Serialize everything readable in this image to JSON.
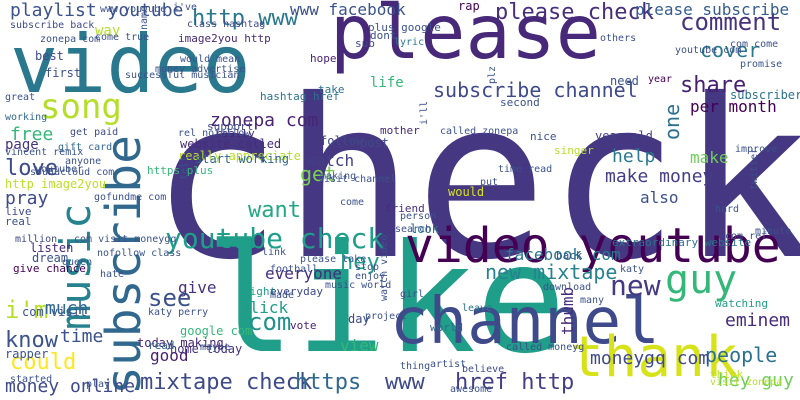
{
  "words": [
    {
      "text": "check",
      "color": "#453781"
    },
    {
      "text": "like",
      "color": "#1f9e89"
    },
    {
      "text": "please",
      "color": "#482878"
    },
    {
      "text": "video youtube",
      "color": "#440154"
    },
    {
      "text": "video",
      "color": "#2a788e"
    },
    {
      "text": "channel",
      "color": "#3e4a89"
    },
    {
      "text": "thank",
      "color": "#d8e219"
    },
    {
      "text": "subscribe",
      "color": "#31688e"
    },
    {
      "text": "music",
      "color": "#26828e"
    },
    {
      "text": "song",
      "color": "#b5de2b"
    },
    {
      "text": "guy",
      "color": "#35b779"
    },
    {
      "text": "youtube check",
      "color": "#1f9e89"
    },
    {
      "text": "mixtape check",
      "color": "#3e4a89"
    },
    {
      "text": "https",
      "color": "#31688e"
    },
    {
      "text": "www",
      "color": "#3e4a89"
    },
    {
      "text": "href http",
      "color": "#433e85"
    },
    {
      "text": "please check",
      "color": "#472d7b"
    },
    {
      "text": "comment",
      "color": "#46337e"
    },
    {
      "text": "subscribe channel",
      "color": "#3e4a89"
    },
    {
      "text": "new mixtape",
      "color": "#26828e"
    },
    {
      "text": "http www",
      "color": "#2a788e"
    },
    {
      "text": "playlist youtube",
      "color": "#3b528b"
    },
    {
      "text": "people",
      "color": "#2c728e"
    },
    {
      "text": "hey guy",
      "color": "#6ece58"
    },
    {
      "text": "i'm",
      "color": "#b5de2b"
    },
    {
      "text": "know",
      "color": "#3b528b"
    },
    {
      "text": "could",
      "color": "#fde725"
    },
    {
      "text": "com",
      "color": "#21918c"
    },
    {
      "text": "see",
      "color": "#3b528b"
    },
    {
      "text": "want",
      "color": "#22a884"
    },
    {
      "text": "make money",
      "color": "#433e85"
    },
    {
      "text": "love",
      "color": "#3e4a89"
    },
    {
      "text": "help",
      "color": "#2a788e"
    },
    {
      "text": "share",
      "color": "#481f70"
    },
    {
      "text": "new",
      "color": "#443983"
    },
    {
      "text": "eminem",
      "color": "#472d7b"
    },
    {
      "text": "moneygq com",
      "color": "#3e4a89"
    },
    {
      "text": "zonepa com",
      "color": "#482475"
    },
    {
      "text": "facebook com",
      "color": "#2a788e"
    },
    {
      "text": "hey",
      "color": "#1f9e89"
    },
    {
      "text": "money online",
      "color": "#3e4a89"
    },
    {
      "text": "get",
      "color": "#7ad151"
    },
    {
      "text": "free",
      "color": "#35b779"
    },
    {
      "text": "cover",
      "color": "#2a788e"
    },
    {
      "text": "www facebook",
      "color": "#3b528b"
    },
    {
      "text": "please subscribe",
      "color": "#365c8d"
    },
    {
      "text": "per month",
      "color": "#440154"
    },
    {
      "text": "one",
      "color": "#2c728e"
    },
    {
      "text": "much",
      "color": "#31688e"
    },
    {
      "text": "time",
      "color": "#3b528b"
    },
    {
      "text": "good",
      "color": "#481f70"
    },
    {
      "text": "view",
      "color": "#35b779"
    },
    {
      "text": "everyone",
      "color": "#472d7b"
    },
    {
      "text": "click",
      "color": "#1f9e89"
    },
    {
      "text": "give",
      "color": "#46337e"
    },
    {
      "text": "thumb",
      "color": "#472d7b"
    },
    {
      "text": "make",
      "color": "#6ece58"
    },
    {
      "text": "also",
      "color": "#3b528b"
    },
    {
      "text": "watch",
      "color": "#433e85"
    },
    {
      "text": "pray",
      "color": "#3e4a89"
    },
    {
      "text": "page",
      "color": "#46337e"
    },
    {
      "text": "life",
      "color": "#35b779"
    },
    {
      "text": "way",
      "color": "#b5de2b"
    },
    {
      "text": "best",
      "color": "#3e4a89"
    },
    {
      "text": "first",
      "color": "#3b528b"
    },
    {
      "text": "post",
      "color": "#3e4a89"
    },
    {
      "text": "follow",
      "color": "#3e4a89"
    },
    {
      "text": "subscriber",
      "color": "#2c728e"
    },
    {
      "text": "second",
      "color": "#3b528b"
    },
    {
      "text": "year old",
      "color": "#433e85"
    },
    {
      "text": "rap",
      "color": "#440154"
    },
    {
      "text": "website called",
      "color": "#472d7b"
    },
    {
      "text": "really appreciate",
      "color": "#b5de2b"
    },
    {
      "text": "start working",
      "color": "#31688e"
    },
    {
      "text": "extraordinary website",
      "color": "#2c728e"
    },
    {
      "text": "google com",
      "color": "#35b779"
    },
    {
      "text": "home today",
      "color": "#46337e"
    },
    {
      "text": "today making",
      "color": "#482475"
    },
    {
      "text": "https plus",
      "color": "#35b779"
    },
    {
      "text": "image2you http",
      "color": "#482878"
    },
    {
      "text": "http image2you",
      "color": "#bddf26"
    },
    {
      "text": "really",
      "color": "#482878"
    },
    {
      "text": "support",
      "color": "#3e4a89"
    },
    {
      "text": "need",
      "color": "#3b528b"
    },
    {
      "text": "year",
      "color": "#440154"
    },
    {
      "text": "take",
      "color": "#2c728e"
    },
    {
      "text": "friend",
      "color": "#472d7b"
    },
    {
      "text": "would",
      "color": "#d8e219"
    },
    {
      "text": "look",
      "color": "#2a788e"
    },
    {
      "text": "day",
      "color": "#3e4a89"
    },
    {
      "text": "back",
      "color": "#3b528b"
    },
    {
      "text": "katy",
      "color": "#3b528b"
    },
    {
      "text": "watching",
      "color": "#1f9e89"
    },
    {
      "text": "listen",
      "color": "#482878"
    },
    {
      "text": "dream",
      "color": "#3b528b"
    },
    {
      "text": "give chance",
      "color": "#440154"
    },
    {
      "text": "million",
      "color": "#3e4a89"
    },
    {
      "text": "rapper",
      "color": "#3b528b"
    },
    {
      "text": "com visit",
      "color": "#3b528b"
    },
    {
      "text": "started",
      "color": "#3b528b"
    },
    {
      "text": "read",
      "color": "#31688e"
    },
    {
      "text": "vote",
      "color": "#481f70"
    },
    {
      "text": "right",
      "color": "#1f9e89"
    },
    {
      "text": "everyday",
      "color": "#3e4a89"
    },
    {
      "text": "mother",
      "color": "#482878"
    },
    {
      "text": "live",
      "color": "#3e4a89"
    },
    {
      "text": "real",
      "color": "#3b528b"
    },
    {
      "text": "hope",
      "color": "#482475"
    },
    {
      "text": "dont",
      "color": "#3b528b"
    },
    {
      "text": "sub",
      "color": "#3e4a89"
    },
    {
      "text": "lyric",
      "color": "#2a788e"
    },
    {
      "text": "plus google",
      "color": "#3b528b"
    },
    {
      "text": "subscribe back",
      "color": "#3e4a89"
    },
    {
      "text": "nice",
      "color": "#3b528b"
    },
    {
      "text": "singer",
      "color": "#b5de2b"
    },
    {
      "text": "world",
      "color": "#31688e"
    },
    {
      "text": "leave",
      "color": "#2c728e"
    },
    {
      "text": "called moneyg",
      "color": "#3b528b"
    },
    {
      "text": "believe",
      "color": "#3e4a89"
    },
    {
      "text": "think",
      "color": "#bddf26"
    },
    {
      "text": "visit zonepa",
      "color": "#b5de2b"
    },
    {
      "text": "awesome",
      "color": "#3b528b"
    },
    {
      "text": "improve",
      "color": "#3b528b"
    },
    {
      "text": "hashtag href",
      "color": "#2c728e"
    },
    {
      "text": "get paid",
      "color": "#3e4a89"
    },
    {
      "text": "gift card",
      "color": "#31688e"
    },
    {
      "text": "working",
      "color": "#31688e"
    },
    {
      "text": "class hashtag",
      "color": "#3e4a89"
    },
    {
      "text": "name",
      "color": "#3b528b"
    },
    {
      "text": "others",
      "color": "#3b528b"
    },
    {
      "text": "girl",
      "color": "#3b528b"
    },
    {
      "text": "made",
      "color": "#3b528b"
    },
    {
      "text": "artist",
      "color": "#3b528b"
    },
    {
      "text": "called zonepa",
      "color": "#3b528b"
    },
    {
      "text": "rel nofollow",
      "color": "#3b528b"
    },
    {
      "text": "nofollow class",
      "color": "#3b528b"
    },
    {
      "text": "time read",
      "color": "#3b528b"
    },
    {
      "text": "come",
      "color": "#3b528b"
    },
    {
      "text": "link",
      "color": "#3b528b"
    },
    {
      "text": "stop",
      "color": "#3b528b"
    },
    {
      "text": "enjoy",
      "color": "#3b528b"
    },
    {
      "text": "project",
      "color": "#3b528b"
    },
    {
      "text": "music world",
      "color": "#3b528b"
    },
    {
      "text": "katy perry",
      "color": "#3b528b"
    },
    {
      "text": "com ref",
      "color": "#3b528b"
    },
    {
      "text": "minute",
      "color": "#3b528b"
    },
    {
      "text": "tell",
      "color": "#3b528b"
    },
    {
      "text": "twitter",
      "color": "#3b528b"
    },
    {
      "text": "great",
      "color": "#3b528b"
    },
    {
      "text": "many",
      "color": "#3b528b"
    },
    {
      "text": "maybe",
      "color": "#3b528b"
    },
    {
      "text": "search",
      "color": "#3b528b"
    },
    {
      "text": "queen",
      "color": "#3b528b"
    },
    {
      "text": "hate",
      "color": "#3b528b"
    },
    {
      "text": "play",
      "color": "#3b528b"
    },
    {
      "text": "thing",
      "color": "#3b528b"
    },
    {
      "text": "person",
      "color": "#3b528b"
    },
    {
      "text": "making",
      "color": "#3b528b"
    },
    {
      "text": "please take",
      "color": "#3b528b"
    },
    {
      "text": "football",
      "color": "#3b528b"
    },
    {
      "text": "visit channel",
      "color": "#3b528b"
    },
    {
      "text": "com come",
      "color": "#3b528b"
    },
    {
      "text": "promise",
      "color": "#3b528b"
    },
    {
      "text": "download",
      "color": "#3b528b"
    },
    {
      "text": "watch video",
      "color": "#3b528b"
    },
    {
      "text": "soundcloud com",
      "color": "#3b528b"
    },
    {
      "text": "anyone",
      "color": "#3b528b"
    },
    {
      "text": "vincent remix",
      "color": "#3b528b"
    },
    {
      "text": "com visit moneygq",
      "color": "#3b528b"
    },
    {
      "text": "gofundme com",
      "color": "#3b528b"
    },
    {
      "text": "youtuber",
      "color": "#3b528b"
    },
    {
      "text": "hard",
      "color": "#3b528b"
    },
    {
      "text": "i've",
      "color": "#3b528b"
    },
    {
      "text": "i'll",
      "color": "#3b528b"
    },
    {
      "text": "plz",
      "color": "#3b528b"
    },
    {
      "text": "would mean",
      "color": "#3b528b"
    },
    {
      "text": "money advertise",
      "color": "#3b528b"
    },
    {
      "text": "successful musician",
      "color": "#3b528b"
    },
    {
      "text": "come true",
      "color": "#3b528b"
    },
    {
      "text": "put",
      "color": "#3b528b"
    },
    {
      "text": "www youtube",
      "color": "#3b528b"
    },
    {
      "text": "zonepa com",
      "color": "#3b528b"
    },
    {
      "text": "youtube com",
      "color": "#3b528b"
    },
    {
      "text": "href",
      "color": "#3b528b"
    },
    {
      "text": "month",
      "color": "#3b528b"
    }
  ]
}
